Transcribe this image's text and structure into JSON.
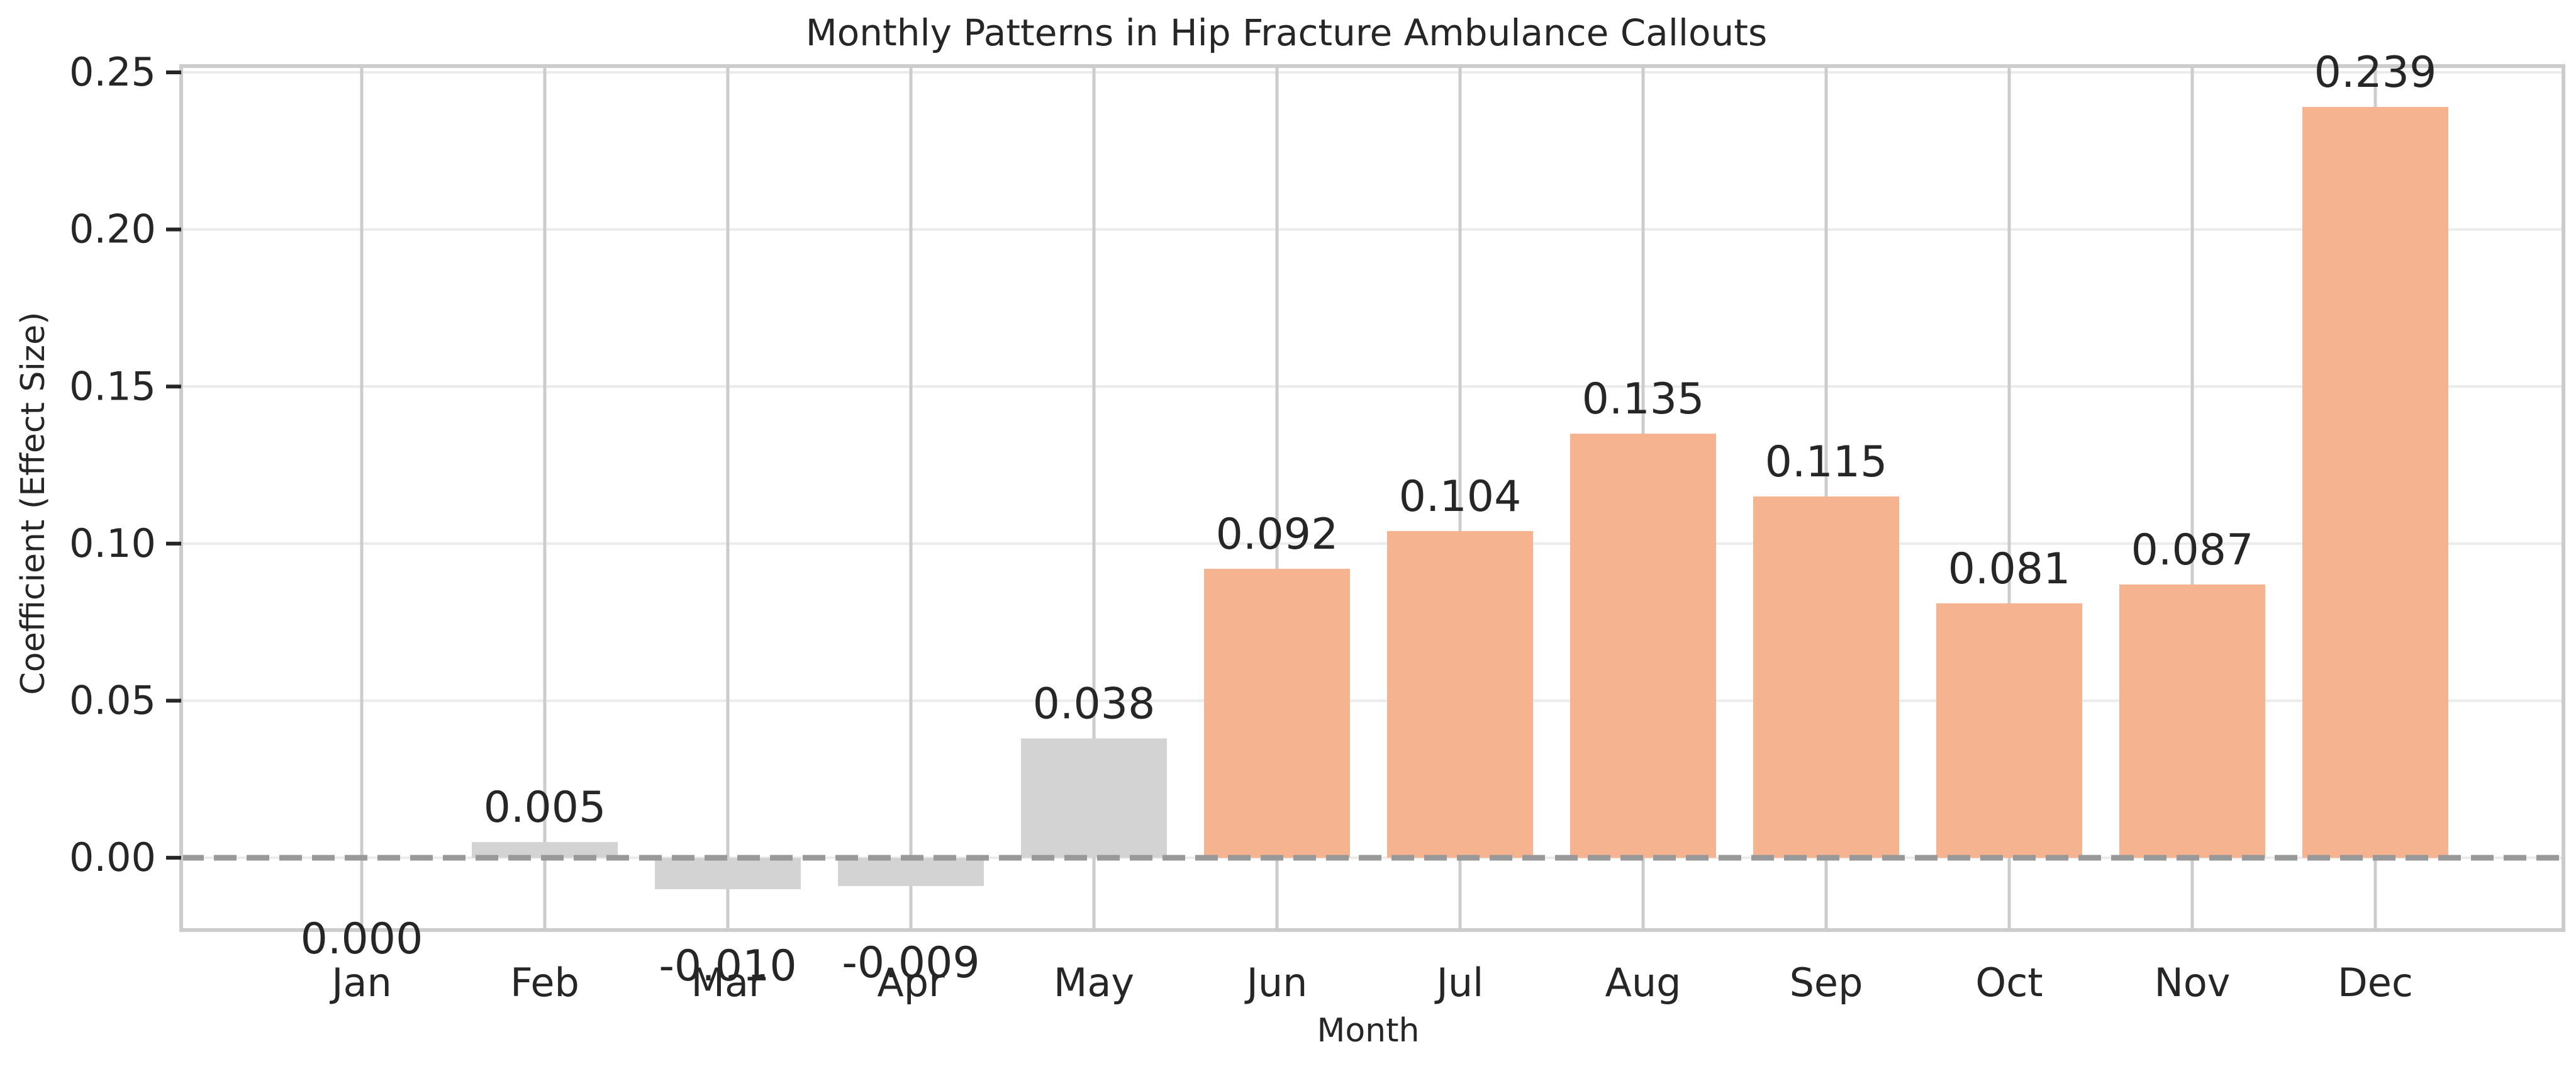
{
  "chart_data": {
    "type": "bar",
    "title": "Monthly Patterns in Hip Fracture Ambulance Callouts",
    "xlabel": "Month",
    "ylabel": "Coefficient (Effect Size)",
    "categories": [
      "Jan",
      "Feb",
      "Mar",
      "Apr",
      "May",
      "Jun",
      "Jul",
      "Aug",
      "Sep",
      "Oct",
      "Nov",
      "Dec"
    ],
    "values": [
      0.0,
      0.005,
      -0.01,
      -0.009,
      0.038,
      0.092,
      0.104,
      0.135,
      0.115,
      0.081,
      0.087,
      0.239
    ],
    "value_labels": [
      "0.000",
      "0.005",
      "-0.010",
      "-0.009",
      "0.038",
      "0.092",
      "0.104",
      "0.135",
      "0.115",
      "0.081",
      "0.087",
      "0.239"
    ],
    "bar_colors": [
      "#d3d3d3",
      "#d3d3d3",
      "#d3d3d3",
      "#d3d3d3",
      "#d3d3d3",
      "#f5b48f",
      "#f5b48f",
      "#f5b48f",
      "#f5b48f",
      "#f5b48f",
      "#f5b48f",
      "#f5b48f"
    ],
    "ylim": [
      -0.023,
      0.252
    ],
    "yticks": [
      0.0,
      0.05,
      0.1,
      0.15,
      0.2,
      0.25
    ],
    "ytick_labels": [
      "0.00",
      "0.05",
      "0.10",
      "0.15",
      "0.20",
      "0.25"
    ],
    "reference_line": {
      "y": 0,
      "style": "dashed",
      "color": "#999999"
    },
    "grid": true,
    "legend": "none"
  }
}
